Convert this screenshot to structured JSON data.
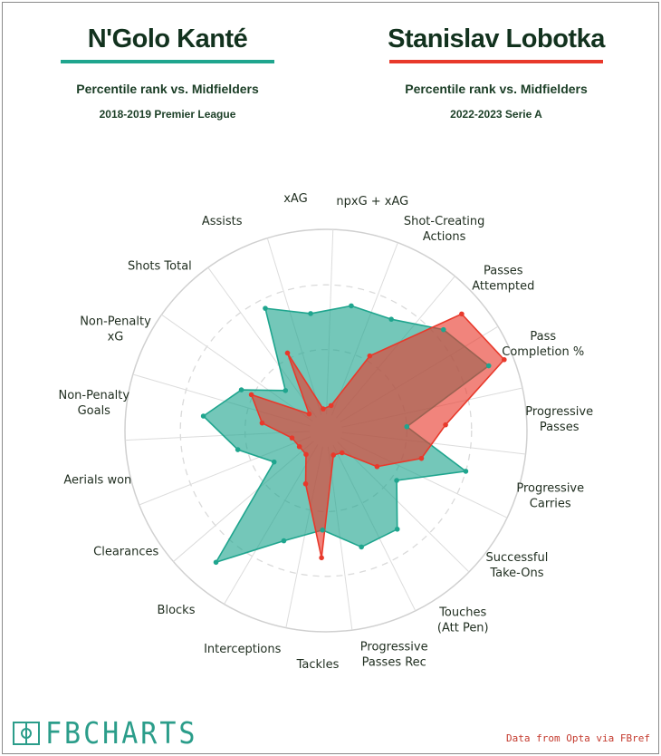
{
  "players": [
    {
      "name": "N'Golo Kanté",
      "subtitle": "Percentile rank vs. Midfielders",
      "season": "2018-2019 Premier League",
      "color": "#1fa58e"
    },
    {
      "name": "Stanislav Lobotka",
      "subtitle": "Percentile rank vs. Midfielders",
      "season": "2022-2023 Serie A",
      "color": "#e8392b"
    }
  ],
  "chart_data": {
    "type": "radar",
    "title": "Percentile rank vs. Midfielders",
    "range": [
      0,
      100
    ],
    "categories": [
      "npxG + xAG",
      "Shot-Creating Actions",
      "Passes Attempted",
      "Pass Completion %",
      "Progressive Passes",
      "Progressive Carries",
      "Successful Take-Ons",
      "Touches (Att Pen)",
      "Progressive Passes Rec",
      "Tackles",
      "Interceptions",
      "Blocks",
      "Clearances",
      "Aerials won",
      "Non-Penalty Goals",
      "Non-Penalty xG",
      "Shots Total",
      "Assists",
      "xAG"
    ],
    "series": [
      {
        "name": "N'Golo Kanté",
        "color": "#1fa58e",
        "values": [
          60,
          61,
          75,
          86,
          35,
          70,
          38,
          57,
          57,
          45,
          55,
          84,
          24,
          40,
          58,
          42,
          22,
          65,
          55
        ]
      },
      {
        "name": "Stanislav Lobotka",
        "color": "#e8392b",
        "values": [
          5,
          38,
          88,
          95,
          56,
          45,
          25,
          6,
          5,
          60,
          22,
          8,
          8,
          10,
          26,
          36,
          4,
          38,
          3
        ]
      }
    ]
  },
  "footer": {
    "logo_text": "FBCHARTS",
    "credit": "Data from Opta via FBref"
  }
}
